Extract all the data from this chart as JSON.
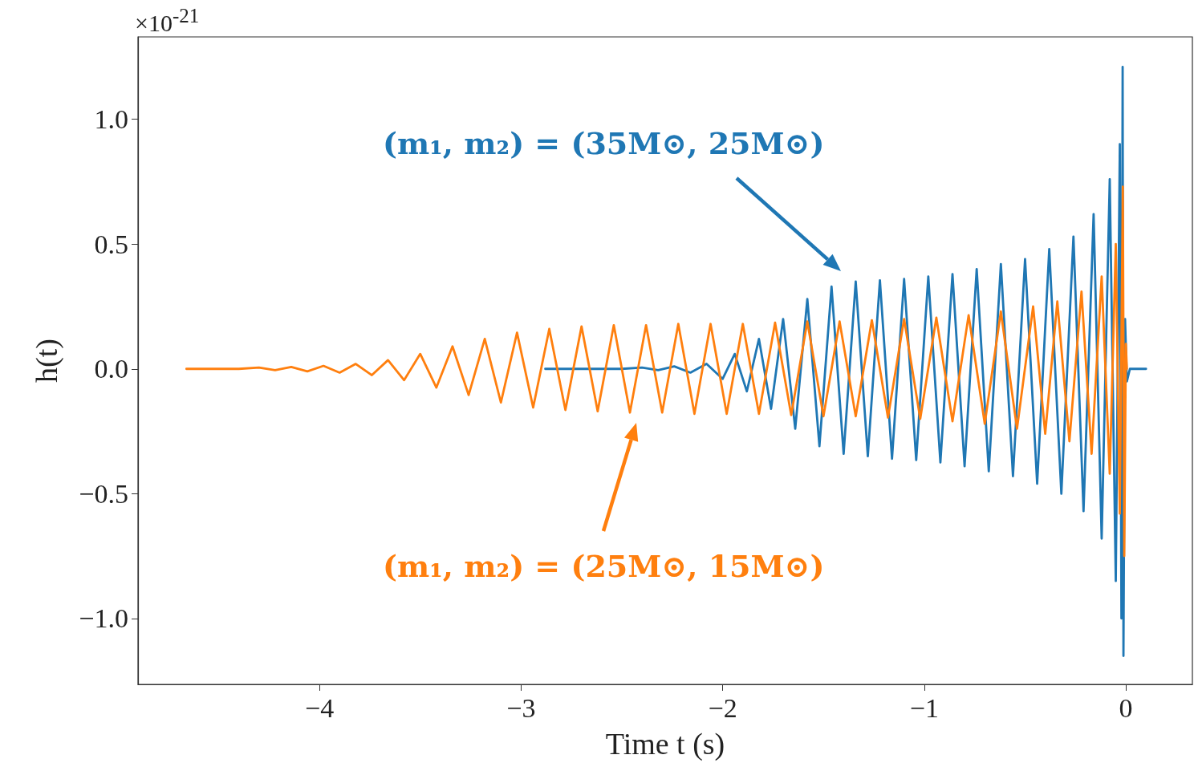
{
  "chart_data": {
    "type": "line",
    "xlabel": "Time t (s)",
    "ylabel": "h(t)",
    "xlim": [
      -4.9,
      0.33
    ],
    "ylim": [
      -1.264,
      1.33
    ],
    "xticks": [
      {
        "value": -4,
        "label": "−4"
      },
      {
        "value": -3,
        "label": "−3"
      },
      {
        "value": -2,
        "label": "−2"
      },
      {
        "value": -1,
        "label": "−1"
      },
      0
    ],
    "yticks": [
      {
        "value": -1,
        "label": "−1.0"
      },
      {
        "value": -0.5,
        "label": "−0.5"
      },
      {
        "value": 0,
        "label": "0.0"
      },
      {
        "value": 0.5,
        "label": "0.5"
      },
      {
        "value": 1,
        "label": "1.0"
      }
    ],
    "grid": false,
    "marker": "none",
    "line_style": "solid",
    "annotations": [
      "×10$^{-21}$",
      "(m₁, m₂) = (35M⊙, 25M⊙)",
      "(m₁, m₂) = (25M⊙, 15M⊙)"
    ],
    "series": [
      {
        "color": "#1f77b4",
        "x": [
          -2.88,
          -2.5,
          -2.4,
          -2.32,
          -2.24,
          -2.16,
          -2.08,
          -2,
          -1.94,
          -1.88,
          -1.82,
          -1.76,
          -1.7,
          -1.64,
          -1.58,
          -1.52,
          -1.46,
          -1.4,
          -1.34,
          -1.28,
          -1.22,
          -1.16,
          -1.1,
          -1.04,
          -0.98,
          -0.92,
          -0.86,
          -0.8,
          -0.74,
          -0.68,
          -0.62,
          -0.56,
          -0.5,
          -0.44,
          -0.38,
          -0.32,
          -0.26,
          -0.21,
          -0.16,
          -0.12,
          -0.08,
          -0.05,
          -0.03,
          -0.022,
          -0.016,
          -0.012,
          -0.004,
          0.005,
          0.02,
          0.1
        ],
        "values": [
          0,
          0,
          0.005,
          -0.005,
          0.01,
          -0.015,
          0.02,
          -0.04,
          0.06,
          -0.09,
          0.12,
          -0.16,
          0.2,
          -0.24,
          0.28,
          -0.31,
          0.33,
          -0.34,
          0.35,
          -0.35,
          0.355,
          -0.36,
          0.36,
          -0.365,
          0.37,
          -0.375,
          0.38,
          -0.39,
          0.4,
          -0.41,
          0.42,
          -0.43,
          0.44,
          -0.46,
          0.48,
          -0.5,
          0.53,
          -0.57,
          0.62,
          -0.68,
          0.76,
          -0.85,
          0.9,
          -1,
          1.21,
          -1.15,
          0.2,
          -0.05,
          0,
          0
        ]
      },
      {
        "color": "#ff7f0e",
        "x": [
          -4.66,
          -4.4,
          -4.3,
          -4.22,
          -4.14,
          -4.06,
          -3.98,
          -3.9,
          -3.82,
          -3.74,
          -3.66,
          -3.58,
          -3.5,
          -3.42,
          -3.34,
          -3.26,
          -3.18,
          -3.1,
          -3.02,
          -2.94,
          -2.86,
          -2.78,
          -2.7,
          -2.62,
          -2.54,
          -2.46,
          -2.38,
          -2.3,
          -2.22,
          -2.14,
          -2.06,
          -1.98,
          -1.9,
          -1.82,
          -1.74,
          -1.66,
          -1.58,
          -1.5,
          -1.42,
          -1.34,
          -1.26,
          -1.18,
          -1.1,
          -1.02,
          -0.94,
          -0.86,
          -0.78,
          -0.7,
          -0.62,
          -0.54,
          -0.46,
          -0.4,
          -0.34,
          -0.28,
          -0.22,
          -0.17,
          -0.12,
          -0.08,
          -0.05,
          -0.03,
          -0.015,
          -0.008,
          0,
          0.005
        ],
        "values": [
          0,
          0,
          0.005,
          -0.005,
          0.008,
          -0.01,
          0.012,
          -0.015,
          0.02,
          -0.025,
          0.035,
          -0.045,
          0.06,
          -0.075,
          0.09,
          -0.105,
          0.12,
          -0.135,
          0.145,
          -0.155,
          0.16,
          -0.165,
          0.17,
          -0.17,
          0.175,
          -0.175,
          0.175,
          -0.175,
          0.18,
          -0.18,
          0.18,
          -0.18,
          0.18,
          -0.18,
          0.185,
          -0.185,
          0.19,
          -0.19,
          0.19,
          -0.19,
          0.195,
          -0.195,
          0.2,
          -0.2,
          0.205,
          -0.21,
          0.215,
          -0.22,
          0.23,
          -0.24,
          0.25,
          -0.26,
          0.27,
          -0.29,
          0.31,
          -0.34,
          0.37,
          -0.42,
          0.5,
          -0.58,
          0.73,
          -0.75,
          0.1,
          0
        ]
      }
    ]
  }
}
